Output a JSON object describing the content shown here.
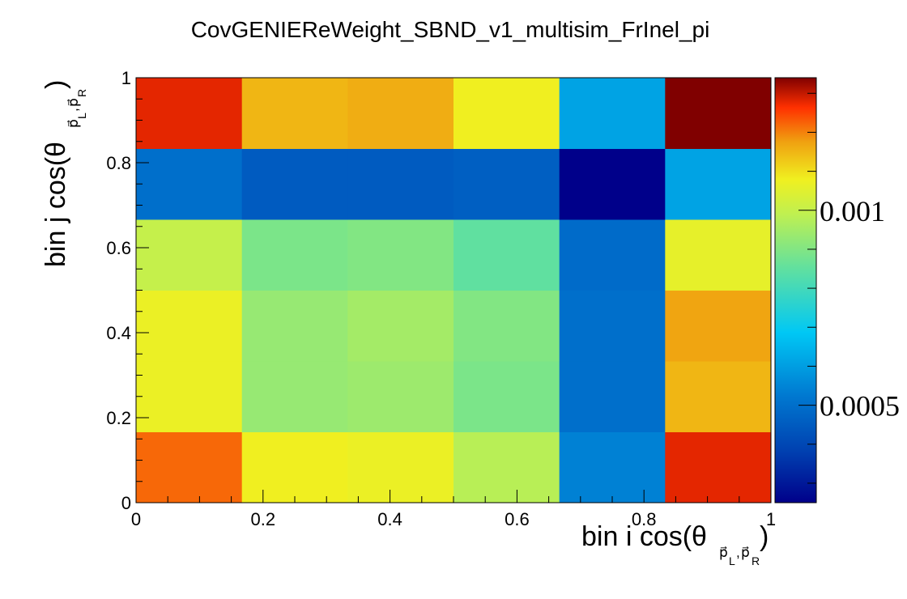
{
  "chart_data": {
    "type": "heatmap",
    "title": "CovGENIEReWeight_SBND_v1_multisim_FrInel_pi",
    "xlabel": {
      "main": "bin i cos(θ",
      "sub": "p⃗",
      "sub_sub": "L",
      "sub2": "p⃗",
      "sub2_sub": "R",
      "close": ")"
    },
    "ylabel": {
      "main": "bin j cos(θ",
      "sub": "p⃗",
      "sub_sub": "L",
      "sub2": "p⃗",
      "sub2_sub": "R",
      "close": ")"
    },
    "x_edges": [
      0,
      0.1667,
      0.3333,
      0.5,
      0.6667,
      0.8333,
      1
    ],
    "y_edges": [
      0,
      0.1667,
      0.3333,
      0.5,
      0.6667,
      0.8333,
      1
    ],
    "xlim": [
      0,
      1
    ],
    "ylim": [
      0,
      1
    ],
    "x_ticks": [
      "0",
      "0.2",
      "0.4",
      "0.6",
      "0.8",
      "1"
    ],
    "y_ticks": [
      "0",
      "0.2",
      "0.4",
      "0.6",
      "0.8",
      "1"
    ],
    "z_range": [
      0.00025,
      0.00134
    ],
    "z_ticks": [
      {
        "value": 0.0005,
        "label": "0.0005"
      },
      {
        "value": 0.001,
        "label": "0.001"
      }
    ],
    "values_rows_bottom_to_top": [
      [
        0.00122,
        0.00108,
        0.00107,
        0.00098,
        0.00054,
        0.00128
      ],
      [
        0.00107,
        0.00093,
        0.00094,
        0.00089,
        0.0005,
        0.00115
      ],
      [
        0.00107,
        0.00093,
        0.00095,
        0.0009,
        0.0005,
        0.00117
      ],
      [
        0.001,
        0.00089,
        0.0009,
        0.00085,
        0.00049,
        0.00106
      ],
      [
        0.0005,
        0.00045,
        0.00045,
        0.00046,
        0.00025,
        0.00061
      ],
      [
        0.00128,
        0.00115,
        0.00116,
        0.00108,
        0.00061,
        0.00134
      ]
    ],
    "grid": false,
    "palette": "rainbow-dark-blue-to-dark-red"
  }
}
